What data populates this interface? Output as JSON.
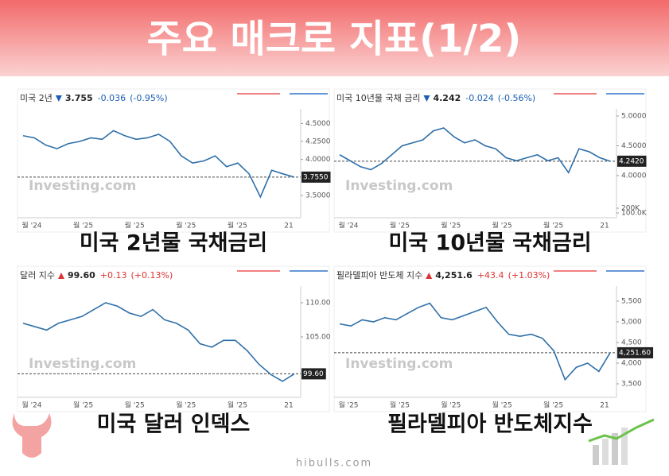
{
  "title": "주요 매크로 지표(1/2)",
  "footer": "hibulls.com",
  "watermark": "Investing.com",
  "chart_data": [
    {
      "type": "line",
      "caption": "미국 2년물 국채금리",
      "header": {
        "name": "미국 2년",
        "value": "3.755",
        "change": "-0.036",
        "pct": "(-0.95%)"
      },
      "color": "#2f6fa8",
      "ylim": [
        3.18,
        4.89
      ],
      "yticks": [
        {
          "value": 4.5,
          "label": "4.5000"
        },
        {
          "value": 4.25,
          "label": "4.2500"
        },
        {
          "value": 4.0,
          "label": "4.0000"
        },
        {
          "value": 3.5,
          "label": "3.5000"
        }
      ],
      "current": {
        "value": 3.755,
        "label": "3.7550"
      },
      "xlabels": [
        "월 '24",
        "월 '25",
        "월 '25",
        "월 '25",
        "월 '25",
        "21"
      ],
      "values": [
        4.33,
        4.3,
        4.2,
        4.15,
        4.22,
        4.25,
        4.3,
        4.28,
        4.4,
        4.33,
        4.28,
        4.3,
        4.35,
        4.25,
        4.05,
        3.95,
        3.98,
        4.05,
        3.9,
        3.95,
        3.8,
        3.48,
        3.85,
        3.8,
        3.755
      ]
    },
    {
      "type": "line",
      "caption": "미국 10년물 국채금리",
      "header": {
        "name": "미국 10년물 국채 금리",
        "value": "4.242",
        "change": "-0.024",
        "pct": "(-0.56%)"
      },
      "color": "#2f6fa8",
      "ylim": [
        3.547,
        5.213
      ],
      "yticks": [
        {
          "value": 5.0,
          "label": "5.0000"
        },
        {
          "value": 4.5,
          "label": "4.5000"
        },
        {
          "value": 4.0,
          "label": "4.0000"
        }
      ],
      "current": {
        "value": 4.242,
        "label": "4.2420"
      },
      "y2lim": [
        0,
        400000
      ],
      "y2ticks": [
        {
          "value": 200000,
          "label": "200K"
        },
        {
          "value": 100000,
          "label": "100.0K"
        }
      ],
      "xlabels": [
        "월 '24",
        "월 '25",
        "월 '25",
        "월 '25",
        "월 '25",
        "21"
      ],
      "values": [
        4.35,
        4.25,
        4.15,
        4.1,
        4.2,
        4.35,
        4.5,
        4.55,
        4.6,
        4.75,
        4.8,
        4.65,
        4.55,
        4.6,
        4.5,
        4.45,
        4.3,
        4.25,
        4.3,
        4.35,
        4.25,
        4.3,
        4.05,
        4.45,
        4.4,
        4.3,
        4.242
      ]
    },
    {
      "type": "line",
      "caption": "미국 달러 인덱스",
      "header": {
        "name": "달러 지수",
        "value": "99.60",
        "change": "+0.13",
        "pct": "(+0.13%)"
      },
      "color": "#2f6fa8",
      "ylim": [
        96.16,
        113.6
      ],
      "yticks": [
        {
          "value": 110,
          "label": "110.00"
        },
        {
          "value": 105,
          "label": "105.00"
        }
      ],
      "current": {
        "value": 99.6,
        "label": "99.60"
      },
      "xlabels": [
        "월 '24",
        "월 '25",
        "월 '25",
        "월 '25",
        "월 '25",
        "21"
      ],
      "values": [
        107,
        106.5,
        106,
        107,
        107.5,
        108,
        109,
        110,
        109.5,
        108.5,
        108,
        109,
        107.5,
        107,
        106,
        104,
        103.5,
        104.5,
        104.5,
        103,
        101,
        99.5,
        98.5,
        99.6
      ]
    },
    {
      "type": "line",
      "caption": "필라델피아 반도체지수",
      "header": {
        "name": "필라델피아 반도체 지수",
        "value": "4,251.6",
        "change": "+43.4",
        "pct": "(+1.03%)"
      },
      "color": "#2f6fa8",
      "ylim": [
        3173,
        6058
      ],
      "yticks": [
        {
          "value": 5500,
          "label": "5,500"
        },
        {
          "value": 5000,
          "label": "5,000"
        },
        {
          "value": 4500,
          "label": "4,500"
        },
        {
          "value": 4000,
          "label": "4,000"
        },
        {
          "value": 3500,
          "label": "3,500"
        }
      ],
      "current": {
        "value": 4251.6,
        "label": "4,251.60"
      },
      "xlabels": [
        "월 '25",
        "월 '25",
        "월 '25",
        "월 '25",
        "월 '25",
        "21"
      ],
      "values": [
        4950,
        4900,
        5050,
        5000,
        5100,
        5050,
        5200,
        5350,
        5450,
        5100,
        5050,
        5150,
        5250,
        5350,
        5000,
        4700,
        4650,
        4700,
        4600,
        4300,
        3600,
        3900,
        4000,
        3800,
        4251.6
      ]
    }
  ]
}
